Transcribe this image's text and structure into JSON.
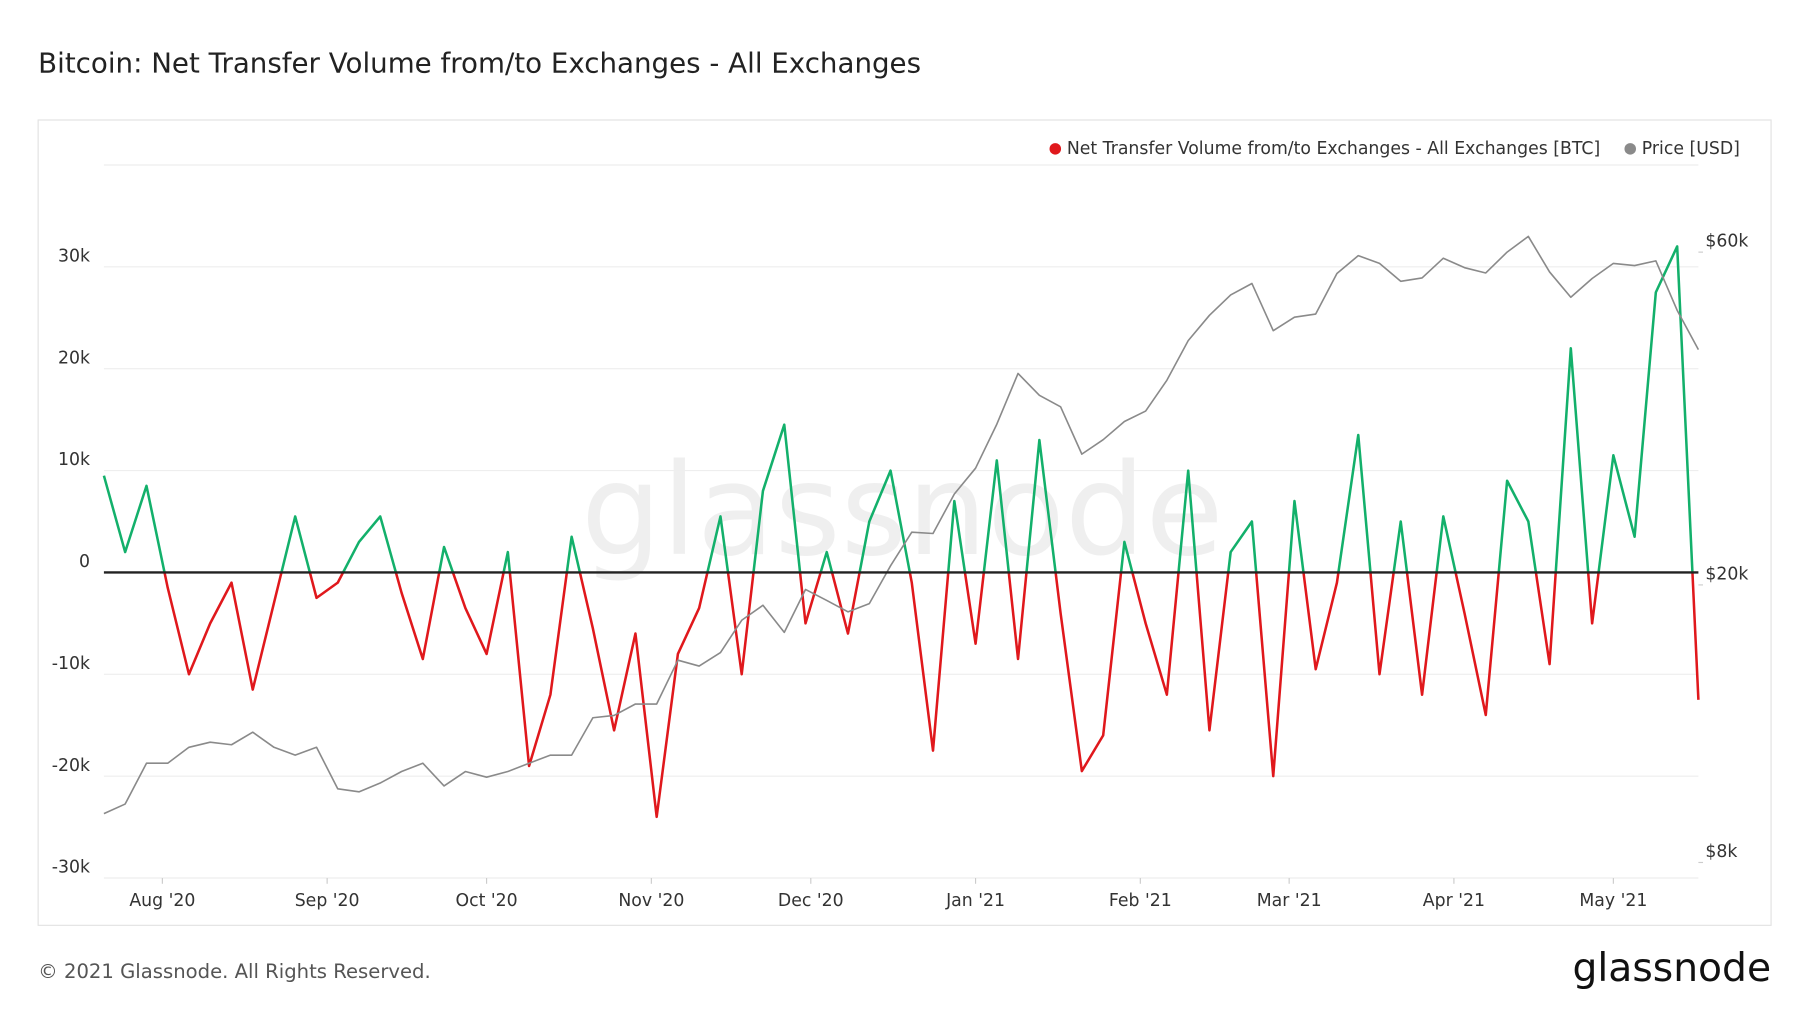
{
  "chart_data": {
    "type": "line",
    "title": "Bitcoin: Net Transfer Volume from/to Exchanges - All Exchanges",
    "watermark": "glassnode",
    "footer": "© 2021 Glassnode. All Rights Reserved.",
    "brand": "glassnode",
    "x": [
      "2020-07-21",
      "2020-07-25",
      "2020-07-29",
      "2020-08-02",
      "2020-08-06",
      "2020-08-10",
      "2020-08-14",
      "2020-08-18",
      "2020-08-22",
      "2020-08-26",
      "2020-08-30",
      "2020-09-03",
      "2020-09-07",
      "2020-09-11",
      "2020-09-15",
      "2020-09-19",
      "2020-09-23",
      "2020-09-27",
      "2020-10-01",
      "2020-10-05",
      "2020-10-09",
      "2020-10-13",
      "2020-10-17",
      "2020-10-21",
      "2020-10-25",
      "2020-10-29",
      "2020-11-02",
      "2020-11-06",
      "2020-11-10",
      "2020-11-14",
      "2020-11-18",
      "2020-11-22",
      "2020-11-26",
      "2020-11-30",
      "2020-12-04",
      "2020-12-08",
      "2020-12-12",
      "2020-12-16",
      "2020-12-20",
      "2020-12-24",
      "2020-12-28",
      "2021-01-01",
      "2021-01-05",
      "2021-01-09",
      "2021-01-13",
      "2021-01-17",
      "2021-01-21",
      "2021-01-25",
      "2021-01-29",
      "2021-02-02",
      "2021-02-06",
      "2021-02-10",
      "2021-02-14",
      "2021-02-18",
      "2021-02-22",
      "2021-02-26",
      "2021-03-02",
      "2021-03-06",
      "2021-03-10",
      "2021-03-14",
      "2021-03-18",
      "2021-03-22",
      "2021-03-26",
      "2021-03-30",
      "2021-04-03",
      "2021-04-07",
      "2021-04-11",
      "2021-04-15",
      "2021-04-19",
      "2021-04-23",
      "2021-04-27",
      "2021-05-01",
      "2021-05-05",
      "2021-05-09",
      "2021-05-13",
      "2021-05-17"
    ],
    "series": [
      {
        "name": "Net Transfer Volume from/to Exchanges - All Exchanges [BTC]",
        "color": "#e0181c",
        "positive_color": "#13b06b",
        "values": [
          9500,
          2000,
          8500,
          -1500,
          -10000,
          -5000,
          -1000,
          -11500,
          -3000,
          5500,
          -2500,
          -1000,
          3000,
          5500,
          -2000,
          -8500,
          2500,
          -3500,
          -8000,
          2000,
          -19000,
          -12000,
          3500,
          -5500,
          -15500,
          -6000,
          -24000,
          -8000,
          -3500,
          5500,
          -10000,
          8000,
          14500,
          -5000,
          2000,
          -6000,
          5000,
          10000,
          -1000,
          -17500,
          7000,
          -7000,
          11000,
          -8500,
          13000,
          -4000,
          -19500,
          -16000,
          3000,
          -5000,
          -12000,
          10000,
          -15500,
          2000,
          5000,
          -20000,
          7000,
          -9500,
          -1000,
          13500,
          -10000,
          5000,
          -12000,
          5500,
          -4000,
          -14000,
          9000,
          5000,
          -9000,
          22000,
          -5000,
          11500,
          3500,
          27500,
          32000,
          -12500
        ]
      },
      {
        "name": "Price [USD]",
        "color": "#8a8a8a",
        "axis": "y2",
        "values": [
          9400,
          9700,
          11100,
          11100,
          11700,
          11900,
          11800,
          12300,
          11700,
          11400,
          11700,
          10200,
          10100,
          10400,
          10800,
          11100,
          10300,
          10800,
          10600,
          10800,
          11100,
          11400,
          11400,
          12900,
          13000,
          13500,
          13500,
          15600,
          15300,
          16000,
          17800,
          18700,
          17100,
          19700,
          19000,
          18300,
          18800,
          21300,
          23800,
          23700,
          27000,
          29400,
          34000,
          40200,
          37400,
          36000,
          30800,
          32300,
          34300,
          35500,
          39300,
          44800,
          48700,
          52100,
          54100,
          46300,
          48400,
          48900,
          55900,
          59300,
          57800,
          54500,
          55100,
          58800,
          57000,
          56000,
          60000,
          63200,
          56200,
          51700,
          55000,
          57800,
          57400,
          58300,
          49500,
          43500
        ]
      }
    ],
    "xlim": [
      "2020-07-21",
      "2021-05-17"
    ],
    "xticks": [
      {
        "value": "2020-08-01",
        "label": "Aug '20"
      },
      {
        "value": "2020-09-01",
        "label": "Sep '20"
      },
      {
        "value": "2020-10-01",
        "label": "Oct '20"
      },
      {
        "value": "2020-11-01",
        "label": "Nov '20"
      },
      {
        "value": "2020-12-01",
        "label": "Dec '20"
      },
      {
        "value": "2021-01-01",
        "label": "Jan '21"
      },
      {
        "value": "2021-02-01",
        "label": "Feb '21"
      },
      {
        "value": "2021-03-01",
        "label": "Mar '21"
      },
      {
        "value": "2021-04-01",
        "label": "Apr '21"
      },
      {
        "value": "2021-05-01",
        "label": "May '21"
      }
    ],
    "ylim": [
      -30000,
      40000
    ],
    "yticks": [
      {
        "value": -30000,
        "label": "-30k"
      },
      {
        "value": -20000,
        "label": "-20k"
      },
      {
        "value": -10000,
        "label": "-10k"
      },
      0,
      {
        "value": 10000,
        "label": "10k"
      },
      {
        "value": 20000,
        "label": "20k"
      },
      {
        "value": 30000,
        "label": "30k"
      }
    ],
    "y2lim": [
      7600,
      80000
    ],
    "y2ticks": [
      {
        "value": 8000,
        "label": "$8k"
      },
      {
        "value": 20000,
        "label": "$20k"
      },
      {
        "value": 60000,
        "label": "$60k"
      }
    ],
    "y2log": true,
    "grid": true,
    "legend": "top-right"
  }
}
